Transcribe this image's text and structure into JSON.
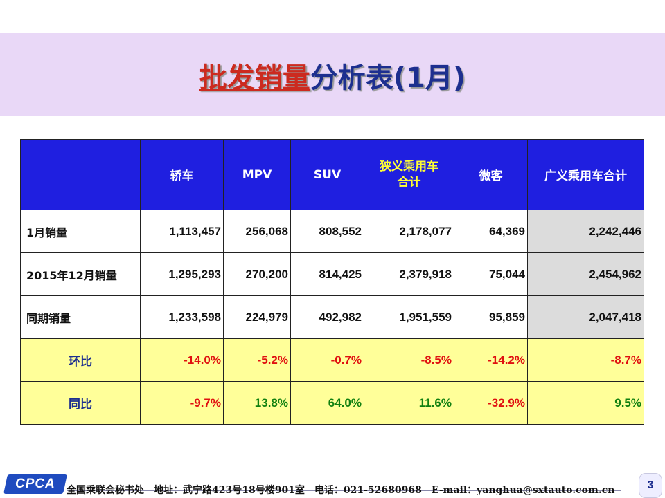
{
  "title": {
    "part1": "批发销量",
    "part2": "分析表(1月)"
  },
  "table": {
    "headers": [
      "",
      "轿车",
      "MPV",
      "SUV",
      "狭义乘用车\n合计",
      "微客",
      "广义乘用车合计"
    ],
    "header_narrow_line1": "狭义乘用车",
    "header_narrow_line2": "合计",
    "rows": [
      {
        "label": "1月销量",
        "values": [
          "1,113,457",
          "256,068",
          "808,552",
          "2,178,077",
          "64,369",
          "2,242,446"
        ]
      },
      {
        "label": "2015年12月销量",
        "values": [
          "1,295,293",
          "270,200",
          "814,425",
          "2,379,918",
          "75,044",
          "2,454,962"
        ]
      },
      {
        "label": "同期销量",
        "values": [
          "1,233,598",
          "224,979",
          "492,982",
          "1,951,559",
          "95,859",
          "2,047,418"
        ]
      },
      {
        "label": "环比",
        "values": [
          "-14.0%",
          "-5.2%",
          "-0.7%",
          "-8.5%",
          "-14.2%",
          "-8.7%"
        ]
      },
      {
        "label": "同比",
        "values": [
          "-9.7%",
          "13.8%",
          "64.0%",
          "11.6%",
          "-32.9%",
          "9.5%"
        ]
      }
    ]
  },
  "footer": {
    "logo": "CPCA",
    "org": "全国乘联会秘书处",
    "address": "地址：武宁路423号18号楼901室",
    "phone": "电话：021-52680968",
    "email": "E-mail：yanghua@sxtauto.com.cn",
    "page": "3"
  },
  "colors": {
    "header_bg": "#1f1fe0",
    "title_band": "#e9d8f7",
    "ratio_bg": "#ffff99",
    "total_bg": "#dcdcdc",
    "negative": "#e01010",
    "positive": "#108010"
  }
}
